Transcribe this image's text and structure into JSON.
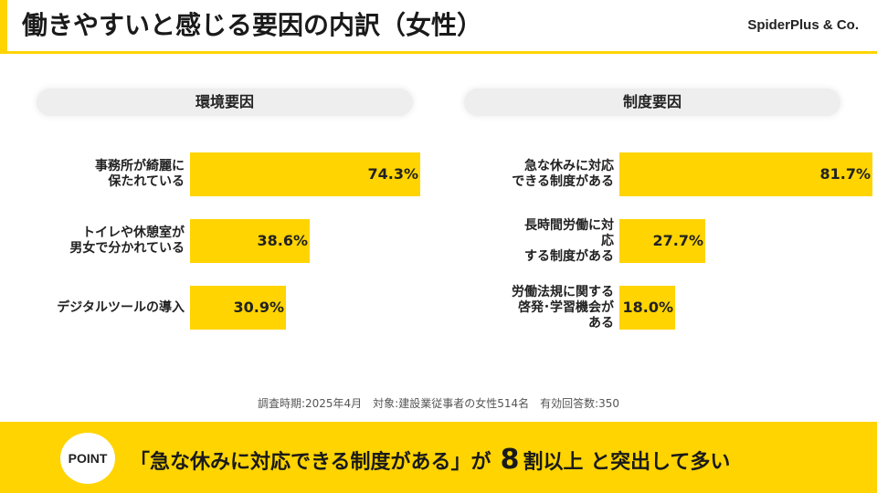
{
  "header": {
    "title": "働きやすいと感じる要因の内訳（女性）",
    "brand": "SpiderPlus & Co."
  },
  "chart_data": [
    {
      "type": "bar",
      "orientation": "horizontal",
      "title": "環境要因",
      "categories": [
        "事務所が綺麗に\n保たれている",
        "トイレや休憩室が\n男女で分かれている",
        "デジタルツールの導入"
      ],
      "values": [
        74.3,
        38.6,
        30.9
      ],
      "value_labels": [
        "74.3%",
        "38.6%",
        "30.9%"
      ],
      "xlim": [
        0,
        100
      ],
      "color": "#FFD400",
      "grid": false
    },
    {
      "type": "bar",
      "orientation": "horizontal",
      "title": "制度要因",
      "categories": [
        "急な休みに対応\nできる制度がある",
        "長時間労働に対\n応\nする制度がある",
        "労働法規に関する\n啓発･学習機会が\nある"
      ],
      "values": [
        81.7,
        27.7,
        18.0
      ],
      "value_labels": [
        "81.7%",
        "27.7%",
        "18.0%"
      ],
      "xlim": [
        0,
        100
      ],
      "color": "#FFD400",
      "grid": false
    }
  ],
  "survey_note": "調査時期:2025年4月　対象:建設業従事者の女性514名　有効回答数:350",
  "point": {
    "badge": "POINT",
    "text": "「急な休みに対応できる制度がある」が",
    "strong": "8",
    "rest": "割以上 と突出して多い"
  },
  "colors": {
    "accent": "#FFD400",
    "header_pill": "#eeeeee"
  }
}
